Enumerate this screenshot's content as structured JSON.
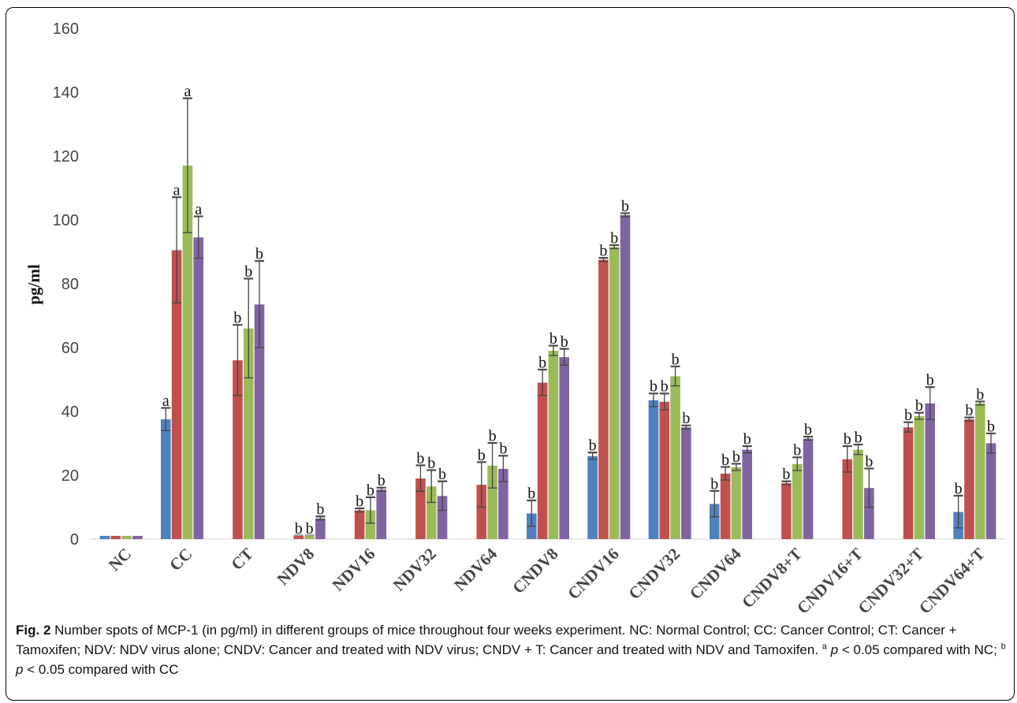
{
  "chart_data": {
    "type": "bar",
    "ylabel": "pg/ml",
    "ylim": [
      0,
      160
    ],
    "yticks": [
      0,
      20,
      40,
      60,
      80,
      100,
      120,
      140,
      160
    ],
    "grid": false,
    "legend": "none",
    "categories": [
      "NC",
      "CC",
      "CT",
      "NDV8",
      "NDV16",
      "NDV32",
      "NDV64",
      "CNDV8",
      "CNDV16",
      "CNDV32",
      "CNDV64",
      "CNDV8+T",
      "CNDV16+T",
      "CNDV32+T",
      "CNDV64+T"
    ],
    "colors": [
      "#4F81BD",
      "#C0504D",
      "#9BBB59",
      "#8064A2"
    ],
    "series": [
      {
        "values": [
          1,
          37.5,
          null,
          null,
          null,
          null,
          null,
          8,
          26,
          43.5,
          11,
          null,
          null,
          null,
          8.5
        ],
        "errors": [
          0,
          3.5,
          null,
          null,
          null,
          null,
          null,
          4,
          1,
          2,
          4,
          null,
          null,
          null,
          5
        ],
        "labels": [
          "",
          "a",
          "",
          "",
          "",
          "",
          "",
          "b",
          "b",
          "b",
          "b",
          "",
          "",
          "",
          "b"
        ]
      },
      {
        "values": [
          1,
          90.5,
          56,
          1,
          9,
          19,
          17,
          49,
          87.5,
          43,
          20.5,
          17.5,
          25,
          35,
          37.5
        ],
        "errors": [
          0,
          16.5,
          11,
          0,
          0.5,
          4,
          7,
          4,
          0.5,
          2.5,
          2,
          0.5,
          4,
          1.5,
          0.5
        ],
        "labels": [
          "",
          "a",
          "b",
          "b",
          "b",
          "b",
          "b",
          "b",
          "b",
          "b",
          "b",
          "b",
          "b",
          "b",
          "b"
        ]
      },
      {
        "values": [
          1,
          117,
          66,
          1,
          9,
          16.5,
          23,
          59,
          91.5,
          51,
          22.5,
          23.5,
          28,
          38.5,
          42.5
        ],
        "errors": [
          0,
          21,
          15.5,
          0,
          4,
          5,
          7,
          1.5,
          0.5,
          3,
          1,
          2,
          1.5,
          1,
          0.5
        ],
        "labels": [
          "",
          "a",
          "b",
          "b",
          "b",
          "b",
          "b",
          "b",
          "b",
          "b",
          "b",
          "b",
          "b",
          "b",
          "b"
        ]
      },
      {
        "values": [
          1,
          94.5,
          73.5,
          6.5,
          15.5,
          13.5,
          22,
          57,
          101.5,
          35,
          28,
          31.5,
          16,
          42.5,
          30
        ],
        "errors": [
          0,
          6.5,
          13.5,
          0.5,
          0.5,
          4.5,
          4,
          2.5,
          0.5,
          0.5,
          1,
          0.5,
          6,
          5,
          3
        ],
        "labels": [
          "",
          "a",
          "b",
          "b",
          "b",
          "b",
          "b",
          "b",
          "b",
          "b",
          "b",
          "b",
          "b",
          "b",
          "b"
        ]
      }
    ]
  },
  "caption": {
    "fig_label": "Fig. 2",
    "text_part1": " Number spots of MCP-1 (in pg/ml) in different groups of mice throughout four weeks experiment. NC: Normal Control; CC: Cancer Control; CT: Cancer + Tamoxifen; NDV: NDV virus alone; CNDV: Cancer and treated with NDV virus; CNDV + T: Cancer and treated with NDV and Tamoxifen. ",
    "sup_a": "a",
    "p_a": "p",
    "text_a": " < 0.05 compared with NC; ",
    "sup_b": "b",
    "p_b": "p",
    "text_b": " < 0.05 compared with CC"
  }
}
